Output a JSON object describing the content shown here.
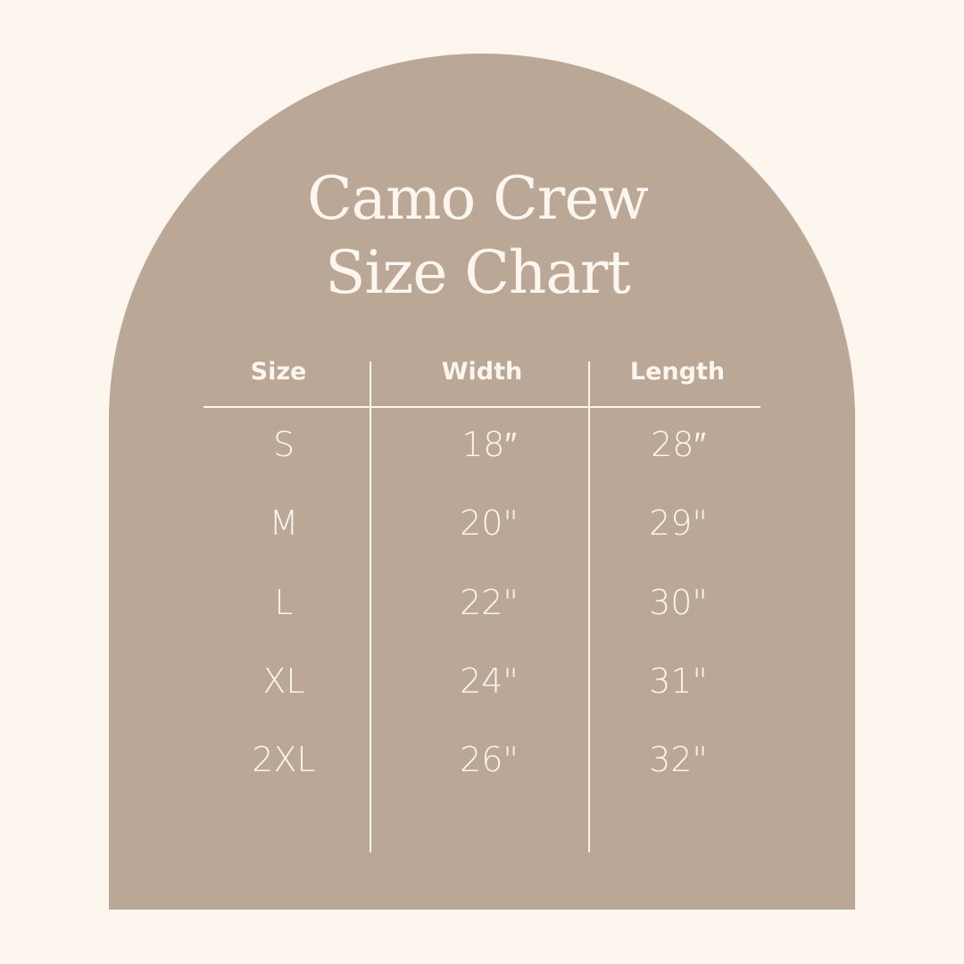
{
  "title": {
    "line1": "Camo Crew",
    "line2": "Size Chart"
  },
  "colors": {
    "background": "#fdf6ef",
    "arch": "#bba795",
    "text": "#fdf6ef"
  },
  "table": {
    "headers": [
      "Size",
      "Width",
      "Length"
    ],
    "rows": [
      [
        "S",
        "18″",
        "28″"
      ],
      [
        "M",
        "20\"",
        "29\""
      ],
      [
        "L",
        "22\"",
        "30\""
      ],
      [
        "XL",
        "24\"",
        "31\""
      ],
      [
        "2XL",
        "26\"",
        "32\""
      ]
    ]
  }
}
